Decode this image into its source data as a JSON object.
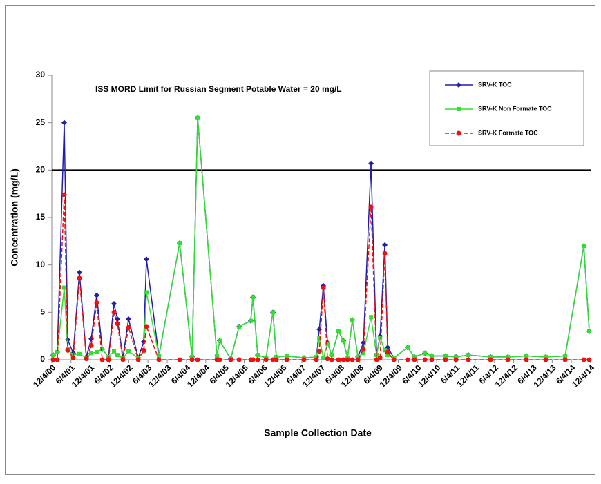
{
  "chart_data": {
    "type": "line",
    "x_label": "Sample Collection Date",
    "y_label": "Concentration  (mg/L)",
    "reference_line": {
      "value": 20,
      "label": "ISS MORD Limit for Russian Segment Potable Water =  20 mg/L",
      "color": "#000000"
    },
    "x": [
      "2000-12-17",
      "2001-01-25",
      "2001-04-01",
      "2001-05-04",
      "2001-06-25",
      "2001-08-23",
      "2001-10-28",
      "2001-12-13",
      "2002-02-03",
      "2002-03-28",
      "2002-05-26",
      "2002-07-17",
      "2002-08-19",
      "2002-10-10",
      "2002-12-02",
      "2003-03-04",
      "2003-04-25",
      "2003-05-21",
      "2003-09-16",
      "2004-03-31",
      "2004-07-27",
      "2004-09-18",
      "2005-03-20",
      "2005-04-15",
      "2005-07-29",
      "2005-10-16",
      "2006-02-04",
      "2006-02-24",
      "2006-04-11",
      "2006-06-29",
      "2006-09-02",
      "2006-10-05",
      "2007-01-11",
      "2007-06-24",
      "2007-10-20",
      "2007-11-16",
      "2007-12-25",
      "2008-02-02",
      "2008-03-13",
      "2008-05-17",
      "2008-07-02",
      "2008-08-10",
      "2008-09-25",
      "2008-11-17",
      "2009-01-08",
      "2009-03-21",
      "2009-05-13",
      "2009-06-15",
      "2009-07-30",
      "2009-08-26",
      "2009-10-24",
      "2010-03-03",
      "2010-05-07",
      "2010-08-14",
      "2010-10-18",
      "2011-02-26",
      "2011-06-05",
      "2011-10-01",
      "2012-04-28",
      "2012-10-09",
      "2013-04-04",
      "2013-10-04",
      "2014-04-06",
      "2014-09-30",
      "2014-11-21"
    ],
    "series": [
      {
        "name": "SRV-K TOC",
        "color": "#1f1fa8",
        "marker": "diamond",
        "dash": false,
        "values": [
          0.5,
          0.8,
          25,
          2.1,
          0.7,
          9.2,
          0.3,
          2.2,
          6.8,
          1.1,
          0.3,
          5.9,
          4.3,
          0.2,
          4.3,
          0.2,
          1.9,
          10.6,
          0.4,
          12.3,
          0.3,
          25.5,
          0.4,
          2.0,
          0.1,
          3.5,
          4.1,
          6.6,
          0.5,
          0.2,
          5.0,
          0.3,
          0.4,
          0.2,
          0.3,
          3.2,
          7.8,
          1.8,
          0.5,
          3.0,
          2.0,
          0.2,
          4.2,
          0.3,
          1.8,
          20.7,
          0.5,
          2.5,
          12.1,
          1.3,
          0.2,
          1.3,
          0.3,
          0.7,
          0.4,
          0.4,
          0.3,
          0.5,
          0.3,
          0.3,
          0.4,
          0.3,
          0.4,
          12.0,
          3.0
        ]
      },
      {
        "name": "SRV-K Non Formate TOC",
        "color": "#33dd33",
        "marker": "square",
        "dash": false,
        "values": [
          0.5,
          0.8,
          7.6,
          1.1,
          0.5,
          0.6,
          0.2,
          0.7,
          0.8,
          1.1,
          0.3,
          0.9,
          0.5,
          0.2,
          0.9,
          0.2,
          0.9,
          7.1,
          0.4,
          12.3,
          0.3,
          25.5,
          0.4,
          2.0,
          0.1,
          3.5,
          4.1,
          6.6,
          0.5,
          0.2,
          5.0,
          0.3,
          0.4,
          0.2,
          0.3,
          2.3,
          0.2,
          1.7,
          0.5,
          3.0,
          2.0,
          0.2,
          4.2,
          0.3,
          0.7,
          4.5,
          0.5,
          2.3,
          1.0,
          0.5,
          0.2,
          1.3,
          0.3,
          0.7,
          0.4,
          0.4,
          0.3,
          0.5,
          0.3,
          0.3,
          0.4,
          0.3,
          0.4,
          12.0,
          3.0
        ]
      },
      {
        "name": "SRV-K Formate TOC",
        "color": "#ee1111",
        "marker": "circle",
        "dash": true,
        "values": [
          0,
          0,
          17.4,
          1.0,
          0.2,
          8.6,
          0.1,
          1.5,
          6.0,
          0,
          0,
          5.0,
          3.8,
          0,
          3.4,
          0,
          1.0,
          3.5,
          0,
          0,
          0,
          0,
          0,
          0,
          0,
          0,
          0,
          0,
          0,
          0,
          0,
          0,
          0,
          0,
          0,
          0.9,
          7.6,
          0.1,
          0,
          0,
          0,
          0,
          0,
          0,
          1.1,
          16.1,
          0,
          0.2,
          11.2,
          0.8,
          0,
          0,
          0,
          0,
          0,
          0,
          0,
          0,
          0,
          0,
          0,
          0,
          0,
          0,
          0
        ]
      }
    ],
    "xlim": [
      "2000-12-04",
      "2014-12-04"
    ],
    "xticks": [
      {
        "value": "2000-12-04",
        "label": "12/4/00"
      },
      {
        "value": "2001-06-04",
        "label": "6/4/01"
      },
      {
        "value": "2001-12-04",
        "label": "12/4/01"
      },
      {
        "value": "2002-06-04",
        "label": "6/4/02"
      },
      {
        "value": "2002-12-04",
        "label": "12/4/02"
      },
      {
        "value": "2003-06-04",
        "label": "6/4/03"
      },
      {
        "value": "2003-12-04",
        "label": "12/4/03"
      },
      {
        "value": "2004-06-04",
        "label": "6/4/04"
      },
      {
        "value": "2004-12-04",
        "label": "12/4/04"
      },
      {
        "value": "2005-06-04",
        "label": "6/4/05"
      },
      {
        "value": "2005-12-04",
        "label": "12/4/05"
      },
      {
        "value": "2006-06-04",
        "label": "6/4/06"
      },
      {
        "value": "2006-12-04",
        "label": "12/4/06"
      },
      {
        "value": "2007-06-04",
        "label": "6/4/07"
      },
      {
        "value": "2007-12-04",
        "label": "12/4/07"
      },
      {
        "value": "2008-06-04",
        "label": "6/4/08"
      },
      {
        "value": "2008-12-04",
        "label": "12/4/08"
      },
      {
        "value": "2009-06-04",
        "label": "6/4/09"
      },
      {
        "value": "2009-12-04",
        "label": "12/4/09"
      },
      {
        "value": "2010-06-04",
        "label": "6/4/10"
      },
      {
        "value": "2010-12-04",
        "label": "12/4/10"
      },
      {
        "value": "2011-06-04",
        "label": "6/4/11"
      },
      {
        "value": "2011-12-04",
        "label": "12/4/11"
      },
      {
        "value": "2012-06-04",
        "label": "6/4/12"
      },
      {
        "value": "2012-12-04",
        "label": "12/4/12"
      },
      {
        "value": "2013-06-04",
        "label": "6/4/13"
      },
      {
        "value": "2013-12-04",
        "label": "12/4/13"
      },
      {
        "value": "2014-06-04",
        "label": "6/4/14"
      },
      {
        "value": "2014-12-04",
        "label": "12/4/14"
      }
    ],
    "ylim": [
      0,
      30
    ],
    "yticks": [
      0,
      5,
      10,
      15,
      20,
      25,
      30
    ],
    "grid": false,
    "legend": "upper right"
  }
}
